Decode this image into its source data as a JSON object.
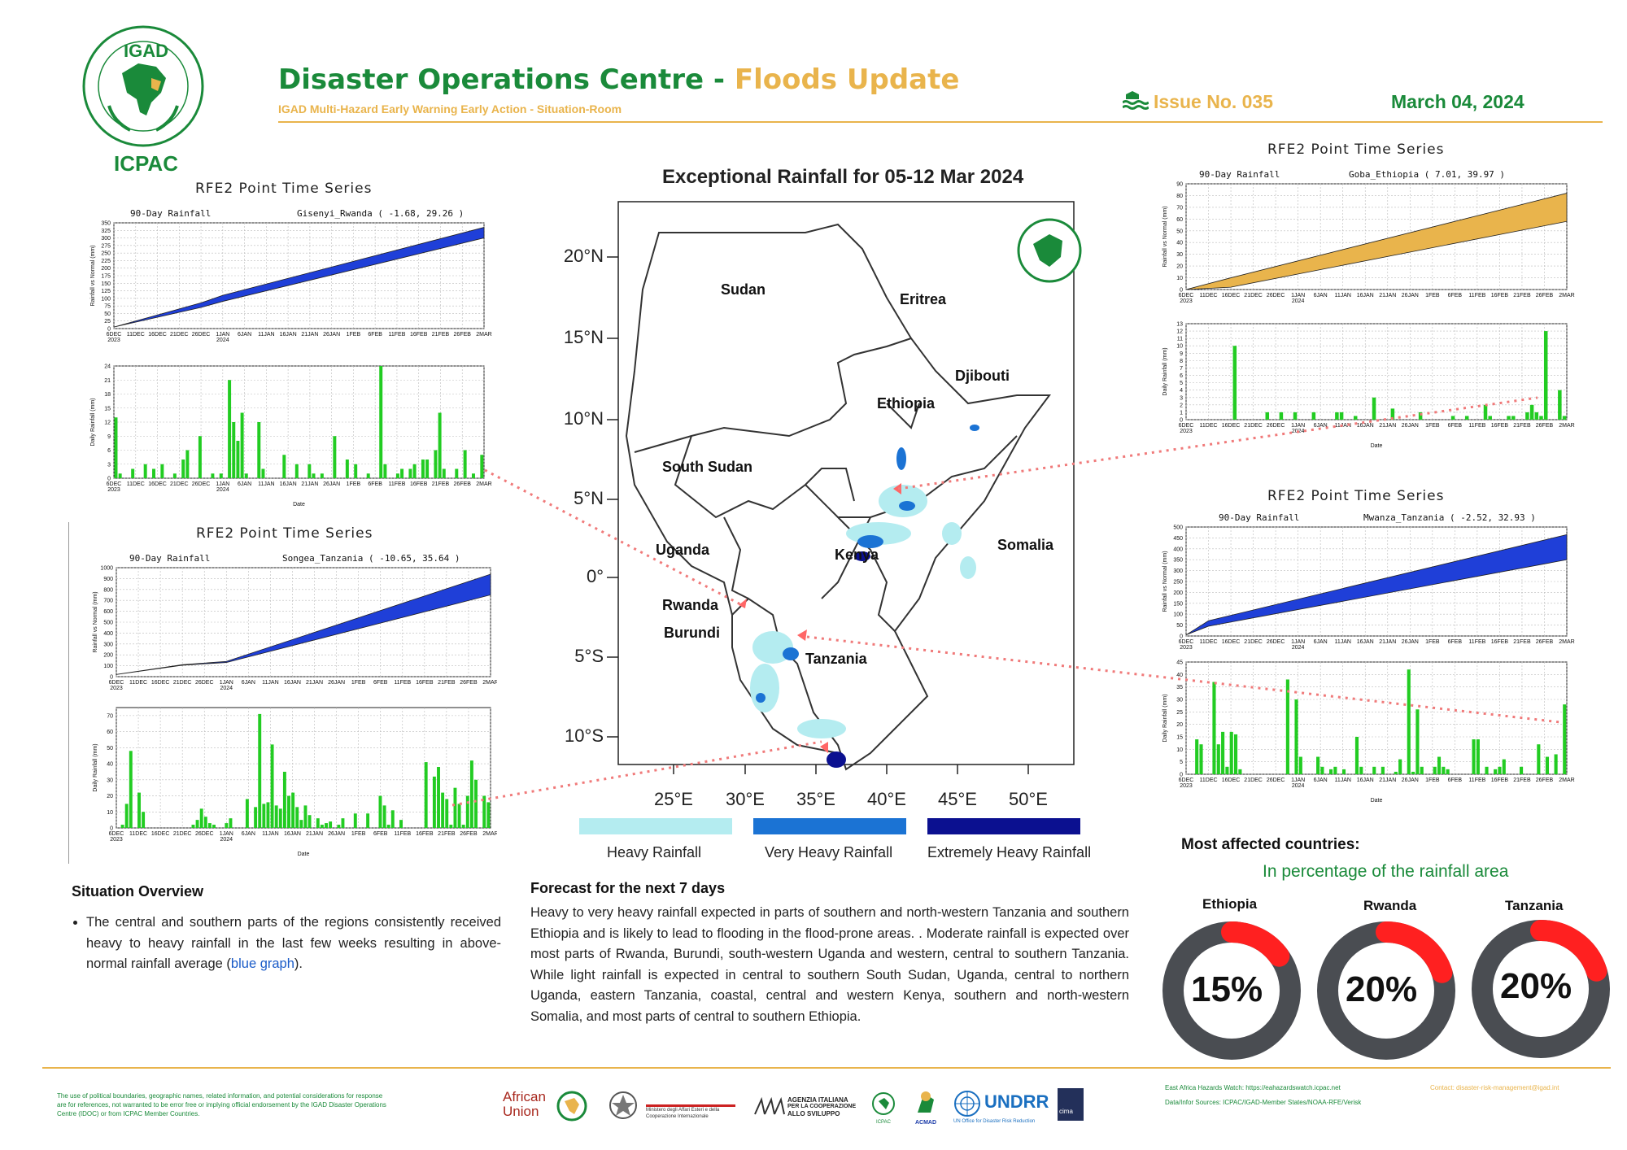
{
  "header": {
    "title_main": "Disaster Operations Centre - ",
    "title_highlight": "Floods Update",
    "subtitle": "IGAD Multi-Hazard Early Warning Early Action - Situation-Room",
    "issue": "Issue No. 035",
    "date": "March 04, 2024",
    "logo_text": "IGAD",
    "org": "ICPAC"
  },
  "colors": {
    "green": "#1a8a3a",
    "gold": "#e9b44c",
    "blue": "#1f3fd8",
    "bar": "#22cc22",
    "red": "#ff2020",
    "donut": "#4a4d52"
  },
  "map": {
    "title": "Exceptional Rainfall for 05-12 Mar 2024",
    "lat_labels": [
      "20°N",
      "15°N",
      "10°N",
      "5°N",
      "0°",
      "5°S",
      "10°S"
    ],
    "lon_labels": [
      "25°E",
      "30°E",
      "35°E",
      "40°E",
      "45°E",
      "50°E"
    ],
    "countries": [
      "Sudan",
      "Eritrea",
      "Djibouti",
      "Ethiopia",
      "South Sudan",
      "Somalia",
      "Uganda",
      "Kenya",
      "Rwanda",
      "Burundi",
      "Tanzania"
    ],
    "legend": [
      {
        "label": "Heavy Rainfall",
        "color": "#b4ecf0"
      },
      {
        "label": "Very Heavy Rainfall",
        "color": "#1b73d4"
      },
      {
        "label": "Extremely Heavy Rainfall",
        "color": "#0b1090"
      }
    ]
  },
  "charts": {
    "gisenyi": {
      "title": "RFE2 Point Time Series",
      "sub_left": "90-Day Rainfall",
      "sub_right": "Gisenyi_Rwanda ( -1.68, 29.26 )"
    },
    "songea": {
      "title": "RFE2 Point Time Series",
      "sub_left": "90-Day Rainfall",
      "sub_right": "Songea_Tanzania ( -10.65, 35.64 )"
    },
    "goba": {
      "title": "RFE2 Point Time Series",
      "sub_left": "90-Day Rainfall",
      "sub_right": "Goba_Ethiopia ( 7.01, 39.97 )"
    },
    "mwanza": {
      "title": "RFE2 Point Time Series",
      "sub_left": "90-Day Rainfall",
      "sub_right": "Mwanza_Tanzania ( -2.52, 32.93 )"
    },
    "ylabel_top": "Rainfall vs Normal (mm)",
    "ylabel_bottom": "Daily Rainfall (mm)",
    "xlabel": "Date",
    "date_ticks": [
      "6DEC",
      "11DEC",
      "16DEC",
      "21DEC",
      "26DEC",
      "1JAN",
      "6JAN",
      "11JAN",
      "16JAN",
      "21JAN",
      "26JAN",
      "1FEB",
      "6FEB",
      "11FEB",
      "16FEB",
      "21FEB",
      "26FEB",
      "2MAR"
    ],
    "year_2023": "2023",
    "year_2024": "2024"
  },
  "chart_data": [
    {
      "type": "area",
      "name": "Gisenyi_Rwanda 90-Day Rainfall",
      "ylim": [
        0,
        350
      ],
      "yticks": [
        0,
        25,
        50,
        75,
        100,
        125,
        150,
        175,
        200,
        225,
        250,
        275,
        300,
        325,
        350
      ],
      "x": [
        "6DEC",
        "26DEC",
        "1JAN",
        "2MAR"
      ],
      "rainfall": [
        5,
        85,
        110,
        335
      ],
      "normal": [
        5,
        70,
        90,
        300
      ]
    },
    {
      "type": "bar",
      "name": "Gisenyi_Rwanda Daily Rainfall",
      "ylim": [
        0,
        24
      ],
      "yticks": [
        0,
        3,
        6,
        9,
        12,
        15,
        18,
        21,
        24
      ],
      "values": [
        13,
        1,
        0,
        0,
        2,
        0,
        0,
        3,
        0,
        2,
        0,
        3,
        0,
        0,
        1,
        0,
        4,
        6,
        0,
        0,
        9,
        0,
        0,
        1,
        0,
        1,
        0,
        21,
        12,
        8,
        14,
        1,
        0,
        0,
        12,
        2,
        0,
        0,
        0,
        0,
        5,
        0,
        0,
        3,
        0,
        0,
        3,
        1,
        0,
        1,
        0,
        0,
        9,
        0,
        0,
        4,
        0,
        3,
        0,
        0,
        1,
        0,
        0,
        24,
        3,
        0,
        0,
        1,
        2,
        0,
        2,
        3,
        0,
        4,
        4,
        0,
        6,
        14,
        2,
        0,
        0,
        2,
        0,
        6,
        0,
        1,
        0,
        5
      ]
    },
    {
      "type": "area",
      "name": "Goba_Ethiopia 90-Day Rainfall",
      "ylim": [
        0,
        90
      ],
      "yticks": [
        0,
        10,
        20,
        30,
        40,
        50,
        60,
        70,
        80,
        90
      ],
      "x": [
        "6DEC",
        "16DEC",
        "2MAR"
      ],
      "rainfall": [
        0,
        10,
        82
      ],
      "normal": [
        0,
        2,
        58
      ]
    },
    {
      "type": "bar",
      "name": "Goba_Ethiopia Daily Rainfall",
      "ylim": [
        0,
        13
      ],
      "yticks": [
        0,
        1,
        2,
        3,
        4,
        5,
        6,
        7,
        8,
        9,
        10,
        11,
        12,
        13
      ],
      "values": [
        0,
        0,
        0,
        0,
        0,
        0,
        0,
        0,
        0,
        0,
        10,
        0,
        0,
        0,
        0,
        0,
        0,
        1,
        0,
        0,
        1,
        0,
        0,
        1,
        0,
        0,
        0,
        1,
        0,
        0,
        0,
        0,
        1,
        1,
        0,
        0,
        0.5,
        0,
        0,
        0,
        3,
        0,
        0,
        0,
        1.5,
        0,
        0,
        0,
        0,
        0,
        1,
        0,
        0,
        0,
        0,
        0,
        0,
        0.5,
        0,
        0,
        0.5,
        0,
        0,
        0,
        2,
        0.5,
        0,
        0,
        0,
        0.5,
        0.5,
        0,
        0,
        1,
        2,
        1,
        0.5,
        12,
        0,
        0,
        4,
        0.5
      ]
    },
    {
      "type": "area",
      "name": "Songea_Tanzania 90-Day Rainfall",
      "ylim": [
        0,
        1000
      ],
      "yticks": [
        0,
        100,
        200,
        300,
        400,
        500,
        600,
        700,
        800,
        900,
        1000
      ],
      "x": [
        "6DEC",
        "21DEC",
        "1JAN",
        "2MAR"
      ],
      "rainfall": [
        20,
        110,
        140,
        940
      ],
      "normal": [
        20,
        105,
        130,
        750
      ]
    },
    {
      "type": "bar",
      "name": "Songea_Tanzania Daily Rainfall",
      "ylim": [
        0,
        75
      ],
      "yticks": [
        0,
        10,
        20,
        30,
        40,
        50,
        60,
        70
      ],
      "values": [
        0,
        2,
        15,
        48,
        0,
        22,
        10,
        0,
        0,
        0,
        0,
        0,
        0,
        0,
        0,
        0,
        0,
        0,
        2,
        5,
        12,
        7,
        3,
        2,
        0,
        0,
        3,
        6,
        0,
        0,
        0,
        18,
        0,
        13,
        71,
        15,
        16,
        52,
        14,
        12,
        35,
        20,
        22,
        13,
        5,
        14,
        8,
        0,
        6,
        2,
        3,
        4,
        0,
        2,
        6,
        0,
        0,
        9,
        0,
        0,
        9,
        0,
        0,
        20,
        14,
        2,
        11,
        0,
        5,
        0,
        0,
        0,
        0,
        0,
        41,
        0,
        32,
        38,
        22,
        18,
        2,
        25,
        15,
        2,
        20,
        42,
        30,
        0,
        20,
        16
      ]
    },
    {
      "type": "area",
      "name": "Mwanza_Tanzania 90-Day Rainfall",
      "ylim": [
        0,
        500
      ],
      "yticks": [
        0,
        50,
        100,
        150,
        200,
        250,
        300,
        350,
        400,
        450,
        500
      ],
      "x": [
        "6DEC",
        "11DEC",
        "2MAR"
      ],
      "rainfall": [
        5,
        70,
        465
      ],
      "normal": [
        5,
        45,
        350
      ]
    },
    {
      "type": "bar",
      "name": "Mwanza_Tanzania Daily Rainfall",
      "ylim": [
        0,
        45
      ],
      "yticks": [
        0,
        5,
        10,
        15,
        20,
        25,
        30,
        35,
        40,
        45
      ],
      "values": [
        0,
        0,
        14,
        12,
        0,
        0,
        37,
        12,
        17,
        3,
        17,
        16,
        2,
        0,
        0,
        0,
        0,
        0,
        0,
        0,
        0,
        0,
        0,
        38,
        0,
        30,
        7,
        0,
        0,
        0,
        7,
        3,
        0,
        2,
        3,
        0,
        2,
        0,
        0,
        15,
        3,
        0,
        0,
        3,
        0,
        3,
        0,
        0,
        1,
        6,
        0,
        42,
        1,
        26,
        3,
        0,
        0,
        3,
        7,
        3,
        2,
        0,
        0,
        0,
        0,
        0,
        14,
        14,
        0,
        3,
        0,
        2,
        3,
        6,
        0,
        0,
        0,
        3,
        0,
        0,
        0,
        12,
        0,
        7,
        0,
        8,
        0,
        28
      ]
    }
  ],
  "situation": {
    "title": "Situation Overview",
    "bullet_pre": "The central and southern parts of the regions consistently received heavy to heavy rainfall in the last few weeks resulting in above-normal rainfall average (",
    "bullet_link": "blue graph",
    "bullet_post": ")."
  },
  "forecast": {
    "title": "Forecast for the next 7 days",
    "text": "Heavy to very heavy rainfall expected in parts of southern and north-western Tanzania and southern Ethiopia and is likely to lead to flooding in the flood-prone areas. . Moderate rainfall is expected over most parts of Rwanda, Burundi, south-western Uganda and western, central to southern Tanzania. While light rainfall is expected in central to southern South Sudan, Uganda, central to northern Uganda, eastern Tanzania, coastal, central and western Kenya, southern and north-western Somalia, and most parts of central to southern Ethiopia."
  },
  "affected": {
    "title": "Most affected countries:",
    "subtitle": "In percentage of the rainfall area",
    "countries": [
      {
        "name": "Ethiopia",
        "pct": "15%",
        "value": 15
      },
      {
        "name": "Rwanda",
        "pct": "20%",
        "value": 20
      },
      {
        "name": "Tanzania",
        "pct": "20%",
        "value": 20
      }
    ]
  },
  "footer": {
    "disclaimer": "The use of political boundaries, geographic names, related information, and potential considerations for response are for references, not warranted to be error free or implying official endorsement by the IGAD Disaster Operations Centre (IDOC) or from ICPAC Member Countries.",
    "watch": "East Africa Hazards Watch: https://eahazardswatch.icpac.net",
    "contact": "Contact: disaster-risk-management@igad.int",
    "sources": "Data/Infor Sources: ICPAC/IGAD-Member States/NOAA-RFE/Verisk",
    "partners": {
      "au": "African Union",
      "italy": "Ministero degli Affari Esteri e della Cooperazione Internazionale",
      "aics1": "AGENZIA ITALIANA",
      "aics2": "PER LA COOPERAZIONE",
      "aics3": "ALLO SVILUPPO",
      "icpac": "ICPAC",
      "acmad": "ACMAD",
      "undrr": "UNDRR",
      "undrr_sub": "UN Office for Disaster Risk Reduction",
      "cima": "cima"
    }
  }
}
